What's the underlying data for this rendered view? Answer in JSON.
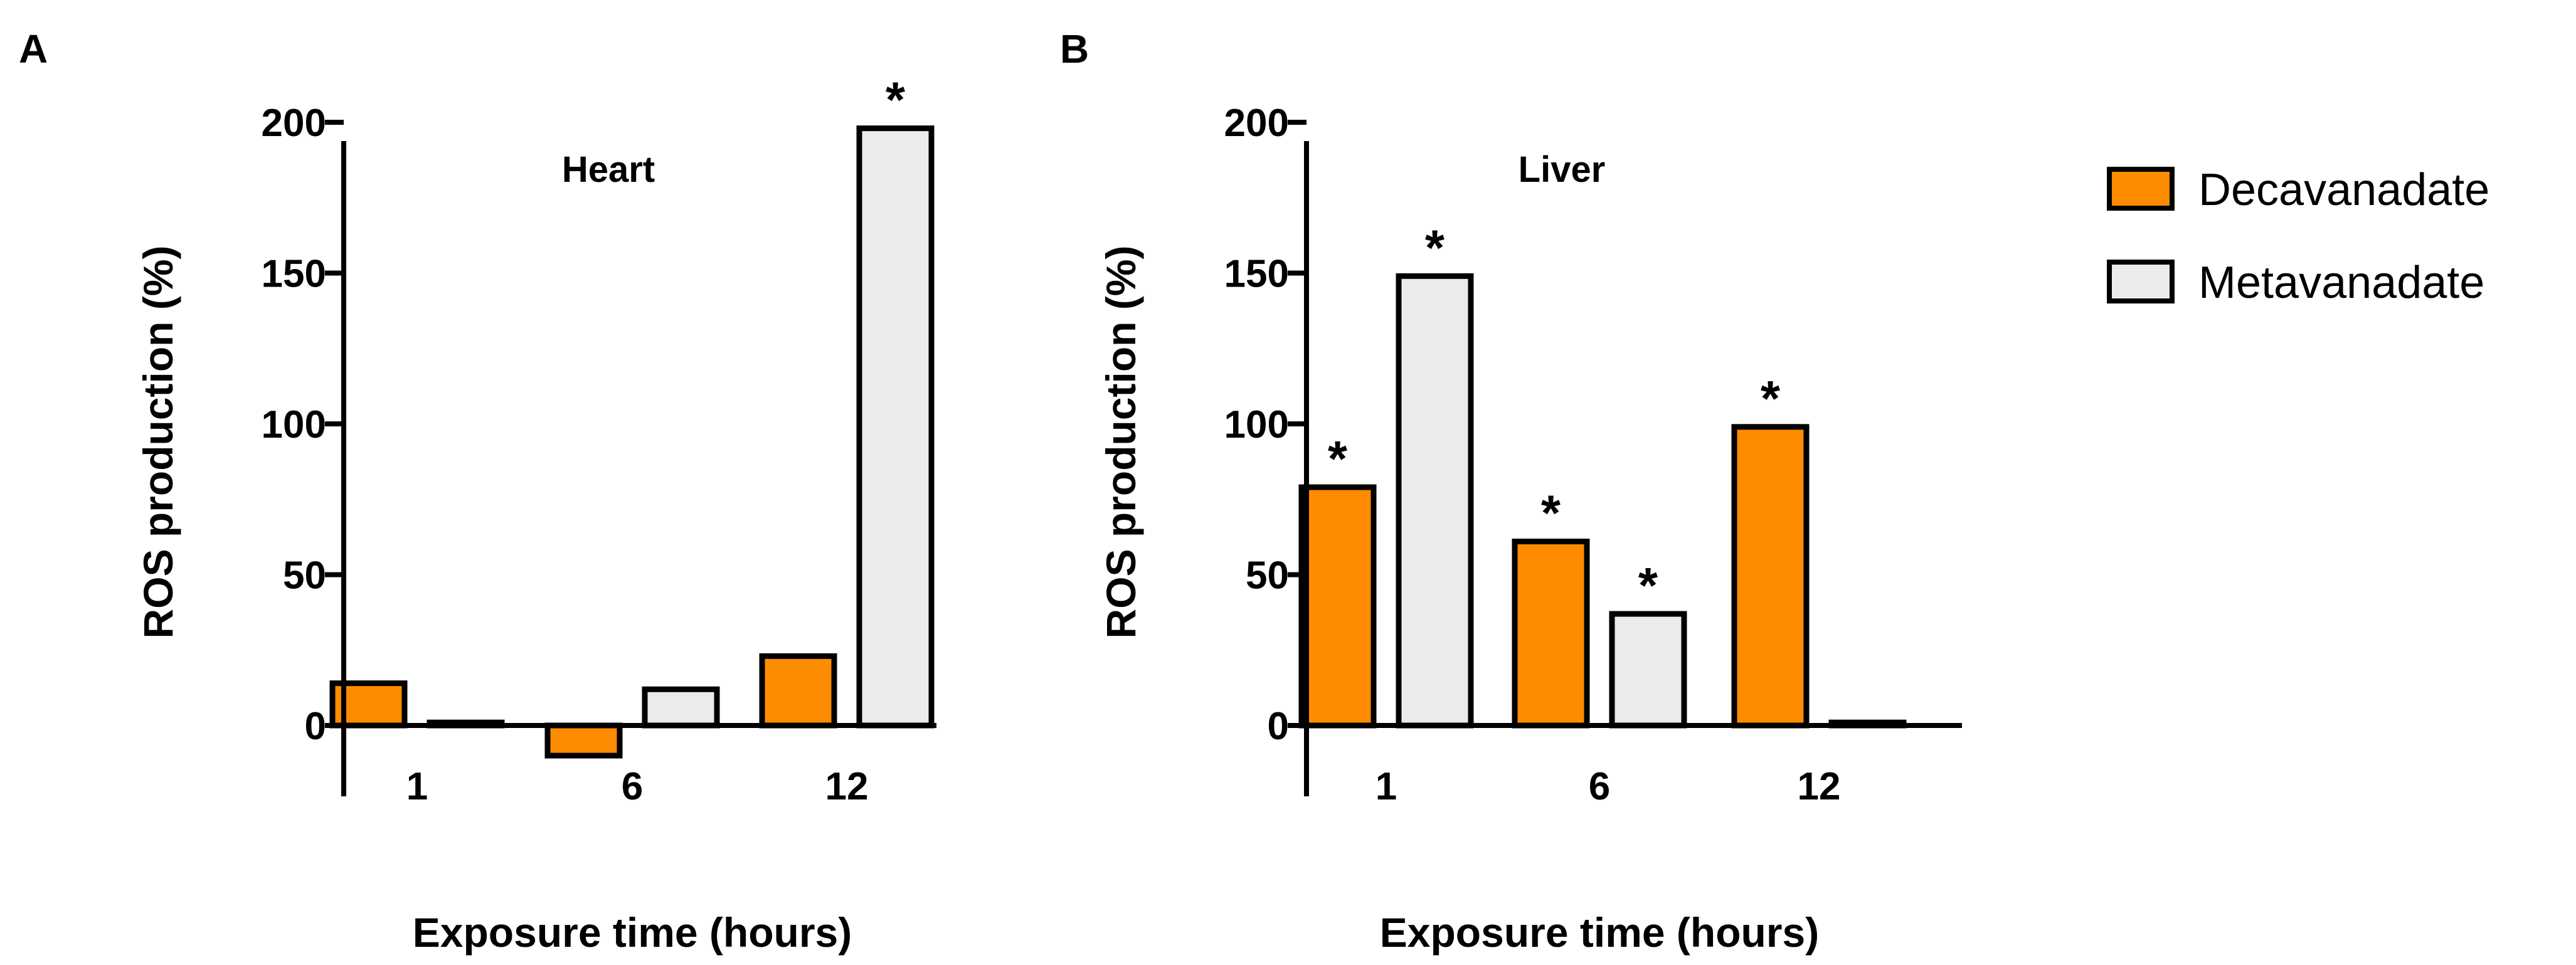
{
  "colors": {
    "decavanadate": "#FF8C00",
    "metavanadate": "#EBEBEB",
    "stroke": "#000000"
  },
  "legend": {
    "placement": "right",
    "items": [
      "Decavanadate",
      "Metavanadate"
    ]
  },
  "chart_data": [
    {
      "type": "bar",
      "panel_label": "A",
      "title": "Heart",
      "xlabel": "Exposure time (hours)",
      "ylabel": "ROS production (%)",
      "categories": [
        "1",
        "6",
        "12"
      ],
      "ylim": [
        -10,
        200
      ],
      "yticks": [
        0,
        50,
        100,
        150,
        200
      ],
      "series": [
        {
          "name": "Decavanadate",
          "values": [
            14,
            -10,
            23
          ],
          "significant": [
            false,
            false,
            false
          ]
        },
        {
          "name": "Metavanadate",
          "values": [
            1,
            12,
            198
          ],
          "significant": [
            false,
            false,
            true
          ]
        }
      ],
      "significance_marker": "*"
    },
    {
      "type": "bar",
      "panel_label": "B",
      "title": "Liver",
      "xlabel": "Exposure time (hours)",
      "ylabel": "ROS production (%)",
      "categories": [
        "1",
        "6",
        "12"
      ],
      "ylim": [
        -10,
        200
      ],
      "yticks": [
        0,
        50,
        100,
        150,
        200
      ],
      "series": [
        {
          "name": "Decavanadate",
          "values": [
            79,
            61,
            99
          ],
          "significant": [
            true,
            true,
            true
          ]
        },
        {
          "name": "Metavanadate",
          "values": [
            149,
            37,
            1
          ],
          "significant": [
            true,
            true,
            false
          ]
        }
      ],
      "significance_marker": "*"
    }
  ]
}
